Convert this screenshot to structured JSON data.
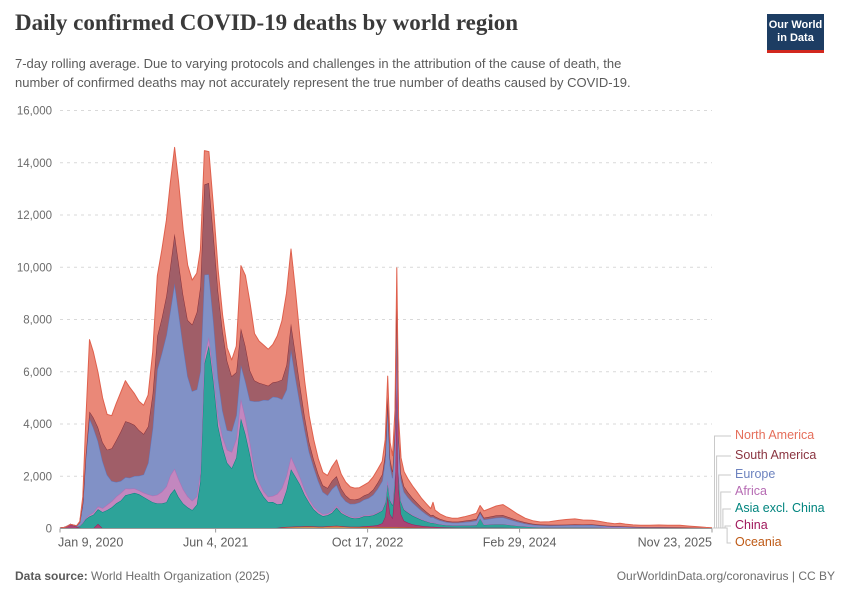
{
  "header": {
    "title": "Daily confirmed COVID-19 deaths by world region",
    "subtitle_lines": [
      "7-day rolling average. Due to varying protocols and challenges in the attribution of the cause of death, the",
      "number of confirmed deaths may not accurately represent the true number of deaths caused by COVID-19."
    ],
    "logo": {
      "line1": "Our World",
      "line2": "in Data",
      "bg": "#1d3d63",
      "stripe": "#d2281e"
    }
  },
  "footer": {
    "source_label": "Data source:",
    "source_text": " World Health Organization (2025)",
    "credit": "OurWorldinData.org/coronavirus | CC BY"
  },
  "chart_data": {
    "type": "area",
    "stacked": true,
    "title": "Daily confirmed COVID-19 deaths by world region",
    "grid": "dashed-horizontal",
    "legend_position": "right",
    "y_axis": {
      "min": 0,
      "max": 16000,
      "tick_step": 2000,
      "tick_labels": [
        "0",
        "2,000",
        "4,000",
        "6,000",
        "8,000",
        "10,000",
        "12,000",
        "14,000",
        "16,000"
      ]
    },
    "x_axis": {
      "unit": "days since first tick date",
      "max_day": 2145,
      "ticks": [
        {
          "label": "Jan 9, 2020",
          "day": 0
        },
        {
          "label": "Jun 4, 2021",
          "day": 512
        },
        {
          "label": "Oct 17, 2022",
          "day": 1012
        },
        {
          "label": "Feb 29, 2024",
          "day": 1512
        },
        {
          "label": "Nov 23, 2025",
          "day": 2145
        }
      ]
    },
    "days": [
      0,
      15,
      25,
      35,
      45,
      55,
      65,
      75,
      85,
      97,
      110,
      125,
      140,
      155,
      170,
      185,
      200,
      215,
      230,
      245,
      260,
      275,
      290,
      305,
      320,
      335,
      350,
      363,
      377,
      390,
      405,
      420,
      435,
      450,
      462,
      475,
      490,
      505,
      520,
      535,
      550,
      565,
      580,
      595,
      610,
      625,
      640,
      655,
      670,
      685,
      700,
      715,
      730,
      745,
      760,
      775,
      790,
      805,
      820,
      835,
      850,
      865,
      880,
      895,
      910,
      925,
      940,
      955,
      970,
      985,
      1000,
      1015,
      1030,
      1045,
      1060,
      1070,
      1078,
      1086,
      1094,
      1102,
      1108,
      1114,
      1122,
      1132,
      1145,
      1160,
      1175,
      1190,
      1205,
      1220,
      1227,
      1234,
      1250,
      1270,
      1290,
      1310,
      1330,
      1350,
      1370,
      1382,
      1395,
      1415,
      1435,
      1457,
      1480,
      1505,
      1530,
      1555,
      1580,
      1610,
      1640,
      1665,
      1694,
      1720,
      1750,
      1775,
      1800,
      1825,
      1842,
      1860,
      1885,
      1910,
      1940,
      1970,
      2000,
      2039,
      2070,
      2100,
      2125,
      2145
    ],
    "series": [
      {
        "name": "Oceania",
        "color": "#BE5915",
        "fill": "#CD8C56",
        "values": [
          1,
          1,
          1,
          1,
          1,
          1,
          1,
          2,
          3,
          5,
          6,
          5,
          4,
          3,
          4,
          8,
          14,
          16,
          12,
          8,
          5,
          4,
          3,
          3,
          3,
          3,
          3,
          4,
          5,
          4,
          3,
          3,
          3,
          3,
          3,
          3,
          3,
          3,
          4,
          4,
          5,
          6,
          8,
          10,
          12,
          12,
          11,
          10,
          9,
          9,
          10,
          20,
          40,
          55,
          65,
          70,
          72,
          78,
          82,
          75,
          68,
          70,
          80,
          92,
          100,
          88,
          72,
          62,
          56,
          55,
          58,
          55,
          52,
          50,
          50,
          50,
          50,
          48,
          47,
          46,
          45,
          44,
          43,
          42,
          40,
          38,
          35,
          30,
          26,
          22,
          22,
          20,
          17,
          14,
          12,
          11,
          11,
          10,
          10,
          10,
          10,
          10,
          10,
          10,
          9,
          8,
          7,
          6,
          5,
          5,
          5,
          5,
          5,
          4,
          4,
          4,
          4,
          3,
          3,
          3,
          3,
          3,
          3,
          3,
          2,
          2,
          2,
          2,
          1,
          1
        ]
      },
      {
        "name": "China",
        "color": "#A0195C",
        "fill": "#AA4474",
        "values": [
          15,
          40,
          90,
          150,
          110,
          60,
          25,
          10,
          5,
          4,
          4,
          170,
          4,
          3,
          3,
          3,
          3,
          3,
          3,
          3,
          3,
          3,
          3,
          3,
          3,
          3,
          3,
          3,
          3,
          3,
          3,
          3,
          3,
          3,
          3,
          3,
          3,
          3,
          3,
          3,
          3,
          3,
          3,
          3,
          3,
          3,
          3,
          3,
          3,
          3,
          3,
          4,
          5,
          5,
          5,
          5,
          5,
          5,
          5,
          4,
          4,
          4,
          4,
          4,
          4,
          4,
          4,
          5,
          8,
          15,
          30,
          40,
          50,
          80,
          150,
          400,
          1200,
          500,
          350,
          1500,
          5800,
          1500,
          500,
          250,
          180,
          120,
          90,
          70,
          55,
          45,
          45,
          40,
          32,
          26,
          22,
          20,
          20,
          18,
          17,
          17,
          16,
          15,
          15,
          15,
          13,
          11,
          9,
          8,
          7,
          7,
          6,
          6,
          6,
          5,
          5,
          5,
          4,
          4,
          4,
          4,
          3,
          3,
          3,
          3,
          3,
          3,
          2,
          2,
          1,
          1
        ]
      },
      {
        "name": "Asia excl. China",
        "color": "#00847E",
        "fill": "#2DA399",
        "values": [
          2,
          3,
          5,
          8,
          12,
          25,
          80,
          200,
          350,
          450,
          520,
          560,
          620,
          700,
          800,
          950,
          1050,
          1250,
          1300,
          1350,
          1300,
          1200,
          1100,
          1000,
          950,
          950,
          1000,
          1300,
          1500,
          1200,
          950,
          800,
          700,
          900,
          1800,
          6300,
          7000,
          5600,
          3900,
          3100,
          2500,
          2300,
          2700,
          4200,
          3600,
          2800,
          1900,
          1500,
          1200,
          1000,
          1000,
          900,
          900,
          1400,
          2200,
          1900,
          1600,
          1200,
          900,
          650,
          500,
          400,
          420,
          500,
          700,
          500,
          420,
          350,
          320,
          330,
          380,
          380,
          400,
          450,
          480,
          520,
          550,
          520,
          500,
          600,
          800,
          600,
          480,
          420,
          380,
          330,
          280,
          230,
          190,
          150,
          150,
          135,
          110,
          90,
          80,
          85,
          90,
          95,
          105,
          380,
          120,
          130,
          140,
          140,
          115,
          85,
          62,
          48,
          40,
          38,
          40,
          42,
          45,
          42,
          40,
          35,
          28,
          24,
          25,
          20,
          17,
          15,
          14,
          13,
          12,
          10,
          8,
          6,
          5,
          4
        ]
      },
      {
        "name": "Africa",
        "color": "#B66BB3",
        "fill": "#C387BF",
        "values": [
          0,
          0,
          0,
          0,
          1,
          2,
          5,
          15,
          40,
          60,
          80,
          110,
          150,
          200,
          230,
          260,
          290,
          260,
          210,
          170,
          150,
          160,
          200,
          250,
          330,
          450,
          600,
          720,
          780,
          700,
          550,
          420,
          350,
          320,
          310,
          310,
          320,
          330,
          360,
          400,
          500,
          620,
          720,
          750,
          620,
          480,
          350,
          260,
          210,
          200,
          230,
          400,
          600,
          550,
          480,
          380,
          280,
          200,
          140,
          110,
          90,
          75,
          65,
          65,
          70,
          60,
          50,
          45,
          42,
          40,
          40,
          38,
          38,
          40,
          40,
          40,
          42,
          40,
          38,
          40,
          50,
          42,
          38,
          35,
          30,
          28,
          25,
          20,
          17,
          14,
          14,
          13,
          11,
          9,
          8,
          8,
          8,
          8,
          9,
          9,
          9,
          9,
          9,
          9,
          8,
          7,
          6,
          5,
          5,
          4,
          4,
          4,
          4,
          4,
          4,
          3,
          3,
          3,
          3,
          3,
          2,
          2,
          2,
          2,
          2,
          2,
          2,
          1,
          1,
          1
        ]
      },
      {
        "name": "Europe",
        "color": "#6276BA",
        "fill": "#8191C6",
        "values": [
          0,
          0,
          0,
          1,
          3,
          15,
          120,
          700,
          2300,
          3700,
          3250,
          2500,
          1800,
          1150,
          780,
          560,
          460,
          430,
          420,
          480,
          560,
          700,
          1200,
          2600,
          4800,
          5300,
          5800,
          6300,
          7100,
          6400,
          5500,
          4600,
          4200,
          4100,
          3900,
          3100,
          2400,
          2000,
          1500,
          1000,
          750,
          800,
          900,
          1300,
          1400,
          1600,
          2600,
          3100,
          3500,
          3700,
          3800,
          3700,
          3400,
          3300,
          4100,
          3400,
          2800,
          2300,
          1800,
          1500,
          1150,
          850,
          700,
          850,
          800,
          600,
          500,
          480,
          520,
          560,
          600,
          650,
          750,
          900,
          1100,
          1600,
          2900,
          1300,
          1000,
          1400,
          2100,
          1100,
          800,
          650,
          560,
          480,
          400,
          330,
          260,
          200,
          210,
          180,
          140,
          110,
          100,
          95,
          115,
          135,
          160,
          170,
          185,
          210,
          240,
          250,
          200,
          145,
          105,
          78,
          62,
          58,
          62,
          66,
          70,
          75,
          80,
          65,
          52,
          43,
          43,
          36,
          30,
          26,
          24,
          23,
          21,
          19,
          14,
          11,
          8,
          7
        ]
      },
      {
        "name": "South America",
        "color": "#883039",
        "fill": "#A05E68",
        "values": [
          0,
          0,
          0,
          0,
          1,
          3,
          10,
          40,
          120,
          260,
          390,
          530,
          720,
          960,
          1250,
          1600,
          1900,
          2150,
          2100,
          1950,
          1750,
          1550,
          1400,
          1300,
          1280,
          1350,
          1500,
          1700,
          1900,
          1900,
          1950,
          2150,
          2550,
          2950,
          3250,
          3450,
          3500,
          3300,
          3300,
          3050,
          2650,
          2100,
          1650,
          1400,
          1350,
          1150,
          800,
          700,
          600,
          550,
          550,
          600,
          750,
          950,
          1000,
          900,
          700,
          500,
          380,
          300,
          260,
          250,
          280,
          320,
          330,
          280,
          220,
          180,
          160,
          150,
          155,
          170,
          200,
          230,
          250,
          260,
          290,
          260,
          250,
          260,
          280,
          255,
          230,
          215,
          195,
          170,
          150,
          120,
          100,
          80,
          80,
          72,
          58,
          48,
          44,
          45,
          50,
          58,
          65,
          68,
          72,
          80,
          88,
          90,
          75,
          60,
          47,
          38,
          33,
          30,
          28,
          27,
          26,
          24,
          23,
          21,
          17,
          14,
          13,
          12,
          11,
          10,
          9,
          8,
          7,
          6,
          5,
          4,
          4,
          3
        ]
      },
      {
        "name": "North America",
        "color": "#DF604D",
        "fill": "#EA8878",
        "values": [
          0,
          0,
          0,
          1,
          2,
          5,
          30,
          250,
          1300,
          2750,
          2500,
          2100,
          1700,
          1350,
          1250,
          1400,
          1500,
          1550,
          1350,
          1200,
          1100,
          1100,
          1200,
          1600,
          2300,
          2600,
          2900,
          3200,
          3300,
          3100,
          2500,
          2100,
          1700,
          1500,
          1400,
          1300,
          1200,
          1050,
          850,
          620,
          500,
          620,
          1000,
          2400,
          2700,
          2600,
          1800,
          1600,
          1500,
          1400,
          1450,
          1750,
          2250,
          2750,
          2850,
          2400,
          1800,
          1350,
          1000,
          750,
          580,
          500,
          480,
          540,
          620,
          550,
          510,
          470,
          440,
          410,
          400,
          430,
          480,
          510,
          500,
          530,
          800,
          630,
          600,
          700,
          900,
          700,
          620,
          560,
          510,
          460,
          410,
          350,
          300,
          250,
          480,
          240,
          190,
          150,
          130,
          135,
          155,
          185,
          215,
          225,
          260,
          310,
          360,
          400,
          330,
          240,
          160,
          115,
          95,
          115,
          165,
          195,
          210,
          170,
          160,
          140,
          110,
          90,
          110,
          90,
          72,
          62,
          72,
          82,
          75,
          85,
          60,
          38,
          24,
          14
        ]
      }
    ],
    "legend": [
      {
        "label": "North America",
        "color": "#E56E5A"
      },
      {
        "label": "South America",
        "color": "#8A3440"
      },
      {
        "label": "Europe",
        "color": "#6D83BF"
      },
      {
        "label": "Africa",
        "color": "#B66BB3"
      },
      {
        "label": "Asia excl. China",
        "color": "#00847E"
      },
      {
        "label": "China",
        "color": "#A0195C"
      },
      {
        "label": "Oceania",
        "color": "#BE5915"
      }
    ]
  }
}
